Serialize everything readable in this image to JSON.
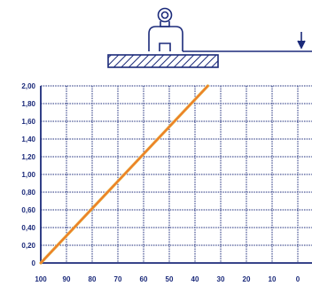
{
  "colors": {
    "grid": "#1b2a7a",
    "line": "#f07b28",
    "line_outline": "#e2b040",
    "illustration": "#1b2a7a"
  },
  "illustration": {
    "icons": [
      "lifting-magnet-icon",
      "steel-plate-icon",
      "arrow-down-icon"
    ]
  },
  "chart_data": {
    "type": "line",
    "x_tick_labels": [
      "100",
      "90",
      "80",
      "70",
      "60",
      "50",
      "40",
      "30",
      "20",
      "10",
      "0"
    ],
    "y_tick_labels": [
      "0",
      "0,20",
      "0,40",
      "0,60",
      "0,80",
      "1,00",
      "1,20",
      "1,40",
      "1,60",
      "1,80",
      "2,00"
    ],
    "xlim": [
      100,
      0
    ],
    "ylim": [
      0,
      2.0
    ],
    "grid": true,
    "series": [
      {
        "x": [
          100,
          35
        ],
        "y": [
          0,
          2.0
        ]
      }
    ]
  }
}
